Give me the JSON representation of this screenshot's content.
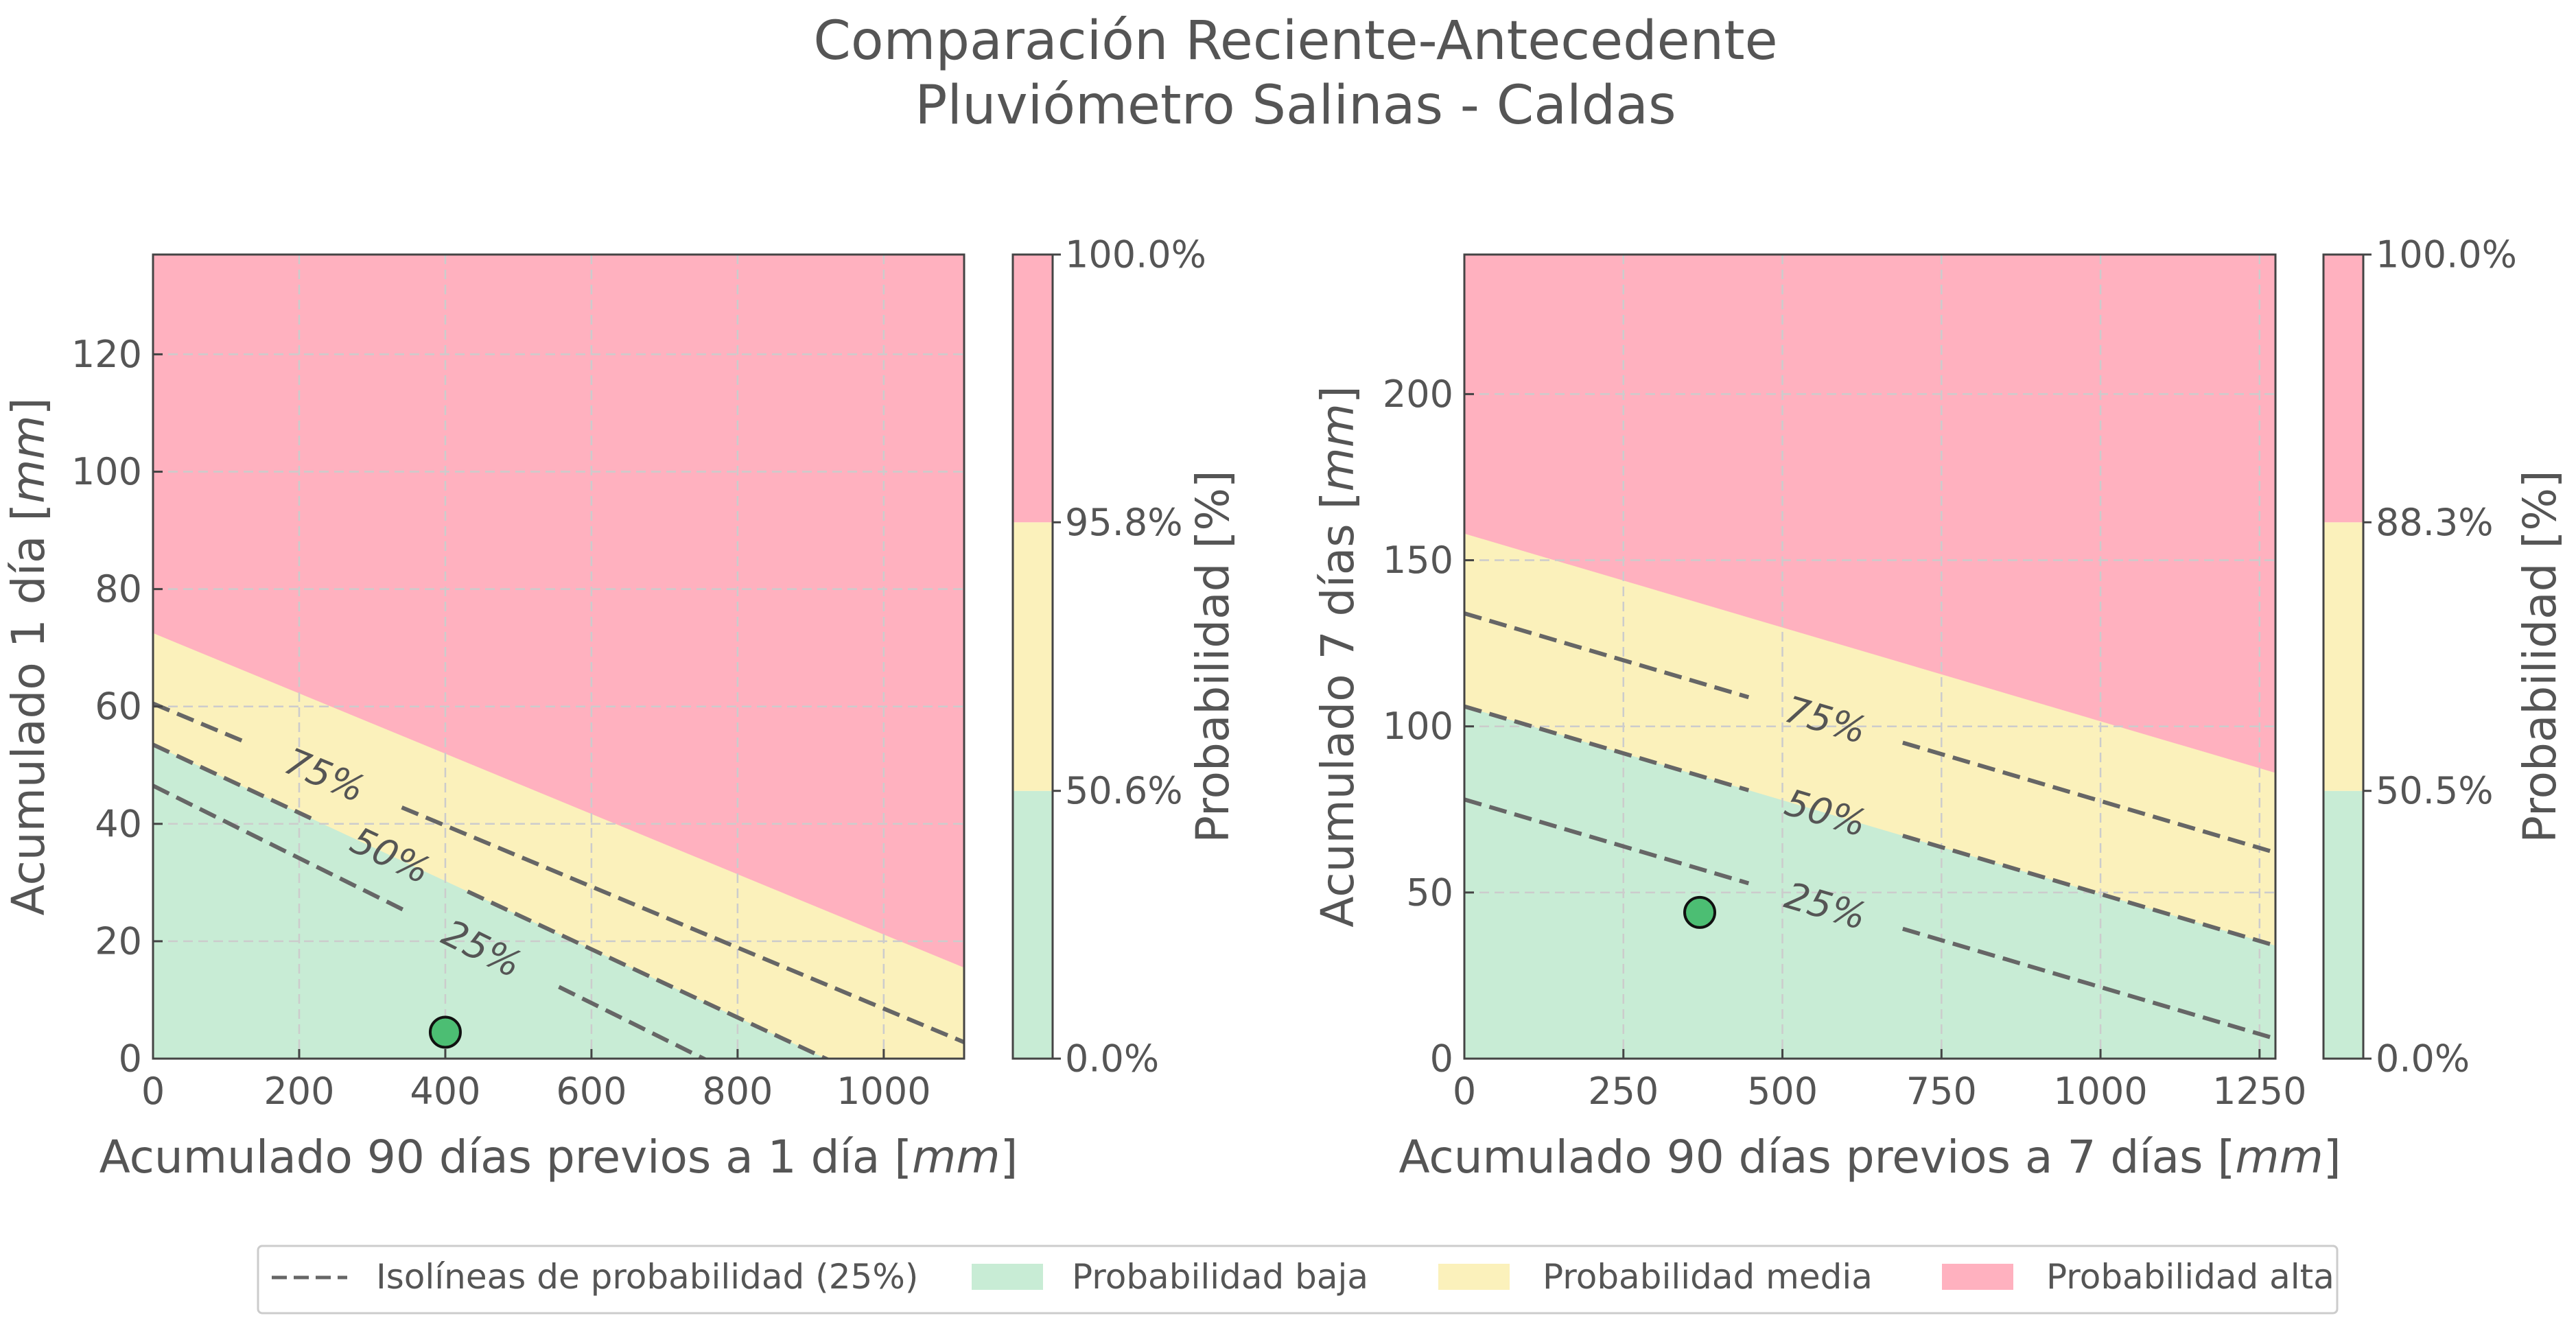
{
  "figure": {
    "title_line1": "Comparación Reciente-Antecedente",
    "title_line2": "Pluviómetro Salinas - Caldas"
  },
  "colors": {
    "low": "#c8ecd5",
    "medium": "#fbf1bb",
    "high": "#ffb1bf",
    "isoline": "#666666",
    "point": "#4cbe73",
    "text": "#555555"
  },
  "legend": {
    "isolines": "Isolíneas de probabilidad (25%)",
    "low": "Probabilidad baja",
    "medium": "Probabilidad media",
    "high": "Probabilidad alta"
  },
  "chart_data": [
    {
      "type": "area",
      "xlabel_text": "Acumulado 90 días previos a 1 día [",
      "xlabel_unit": "mm",
      "xlabel_close": "]",
      "ylabel_text": "Acumulado 1 día [",
      "ylabel_unit": "mm",
      "ylabel_close": "]",
      "xlim": [
        0,
        1110
      ],
      "ylim": [
        0,
        137
      ],
      "xticks": [
        0,
        200,
        400,
        600,
        800,
        1000
      ],
      "yticks": [
        0,
        20,
        40,
        60,
        80,
        100,
        120
      ],
      "grid": true,
      "zone_boundaries": {
        "medium_lower": [
          [
            0,
            53.5
          ],
          [
            1110,
            -11
          ]
        ],
        "high_lower": [
          [
            0,
            72.5
          ],
          [
            1110,
            15.5
          ]
        ]
      },
      "isolines": [
        {
          "label": "75%",
          "points": [
            [
              0,
              60.5
            ],
            [
              1110,
              2.8
            ]
          ]
        },
        {
          "label": "50%",
          "points": [
            [
              0,
              53.5
            ],
            [
              1110,
              -11
            ]
          ]
        },
        {
          "label": "25%",
          "points": [
            [
              0,
              46.5
            ],
            [
              1110,
              -22
            ]
          ]
        }
      ],
      "isoline_labels": [
        {
          "text": "75%",
          "x": 235,
          "y": 48.5
        },
        {
          "text": "50%",
          "x": 325,
          "y": 36.5
        },
        {
          "text": "25%",
          "x": 450,
          "y": 23.5
        }
      ],
      "point": {
        "x": 400,
        "y": 4.5
      },
      "colorbar": {
        "label": "Probabilidad [%]",
        "ticks": [
          "0.0%",
          "50.6%",
          "95.8%",
          "100.0%"
        ],
        "boundaries": [
          0,
          0.333,
          0.667,
          1
        ]
      }
    },
    {
      "type": "area",
      "xlabel_text": "Acumulado 90 días previos a 7 días [",
      "xlabel_unit": "mm",
      "xlabel_close": "]",
      "ylabel_text": "Acumulado 7 días [",
      "ylabel_unit": "mm",
      "ylabel_close": "]",
      "xlim": [
        0,
        1275
      ],
      "ylim": [
        0,
        242
      ],
      "xticks": [
        0,
        250,
        500,
        750,
        1000,
        1250
      ],
      "yticks": [
        0,
        50,
        100,
        150,
        200
      ],
      "grid": true,
      "zone_boundaries": {
        "medium_lower": [
          [
            0,
            106
          ],
          [
            1275,
            34
          ]
        ],
        "high_lower": [
          [
            0,
            158
          ],
          [
            1275,
            86
          ]
        ]
      },
      "isolines": [
        {
          "label": "75%",
          "points": [
            [
              0,
              134
            ],
            [
              1275,
              62
            ]
          ]
        },
        {
          "label": "50%",
          "points": [
            [
              0,
              106
            ],
            [
              1275,
              34
            ]
          ]
        },
        {
          "label": "25%",
          "points": [
            [
              0,
              78
            ],
            [
              1275,
              6
            ]
          ]
        }
      ],
      "isoline_labels": [
        {
          "text": "75%",
          "x": 568,
          "y": 102
        },
        {
          "text": "50%",
          "x": 568,
          "y": 74
        },
        {
          "text": "25%",
          "x": 568,
          "y": 46
        }
      ],
      "point": {
        "x": 370,
        "y": 44
      },
      "colorbar": {
        "label": "Probabilidad [%]",
        "ticks": [
          "0.0%",
          "50.5%",
          "88.3%",
          "100.0%"
        ],
        "boundaries": [
          0,
          0.333,
          0.667,
          1
        ]
      }
    }
  ]
}
